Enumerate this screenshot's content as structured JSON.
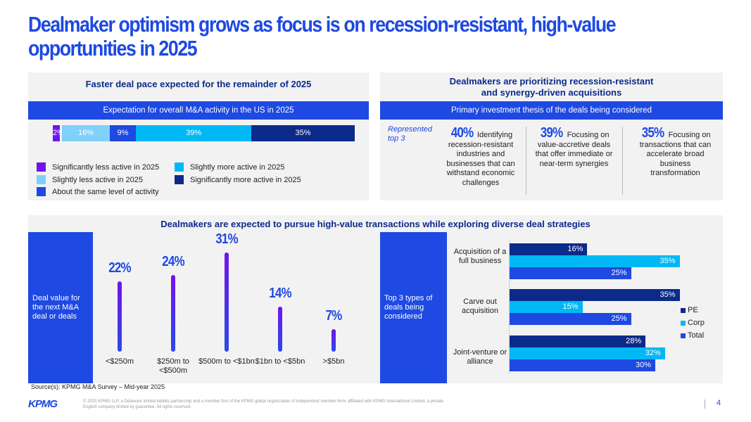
{
  "title": "Dealmaker optimism grows as focus is on recession-resistant, high-value opportunities in 2025",
  "colors": {
    "brand": "#1e49e2",
    "dark": "#0c2a8a",
    "cyan": "#00b8f5",
    "light": "#7fd0fa",
    "purple": "#7213ea"
  },
  "panel1": {
    "heading": "Faster deal pace expected for the remainder of 2025",
    "strip": "Expectation for overall M&A activity in the US in 2025"
  },
  "panel2": {
    "heading": "Dealmakers are prioritizing recession-resistant and synergy-driven acquisitions",
    "strip": "Primary investment thesis of the deals being considered",
    "note": "Represented top 3",
    "items": [
      {
        "pct": "40%",
        "text": "Identifying recession-resistant industries and businesses that can withstand economic challenges"
      },
      {
        "pct": "39%",
        "text": "Focusing on value-accretive deals that offer immediate or near-term synergies"
      },
      {
        "pct": "35%",
        "text": "Focusing on transactions that can accelerate broad business transformation"
      }
    ]
  },
  "panel3": {
    "heading": "Dealmakers are expected to pursue high-value transactions while exploring diverse deal strategies",
    "left_label": "Deal value for the next M&A deal or deals",
    "right_label": "Top 3 types of deals being considered"
  },
  "chart_data": [
    {
      "type": "bar",
      "orientation": "horizontal-stacked",
      "series": [
        {
          "name": "Significantly less active in 2025",
          "value": 2,
          "label": "2%",
          "color": "#7213ea"
        },
        {
          "name": "Slightly less active in 2025",
          "value": 16,
          "label": "16%",
          "color": "#7fd0fa"
        },
        {
          "name": "About the same level of activity",
          "value": 9,
          "label": "9%",
          "color": "#1e49e2"
        },
        {
          "name": "Slightly more active in 2025",
          "value": 39,
          "label": "39%",
          "color": "#00b8f5"
        },
        {
          "name": "Significantly more active in 2025",
          "value": 35,
          "label": "35%",
          "color": "#0c2a8a"
        }
      ],
      "legend": "bottom"
    },
    {
      "type": "bar",
      "categories": [
        "<$250m",
        "$250m to <$500m",
        "$500m to <$1bn",
        "$1bn to <$5bn",
        ">$5bn"
      ],
      "values": [
        22,
        24,
        31,
        14,
        7
      ],
      "labels": [
        "22%",
        "24%",
        "31%",
        "14%",
        "7%"
      ]
    },
    {
      "type": "bar",
      "orientation": "horizontal",
      "categories": [
        "Acquisition of a full business",
        "Carve out acquisition",
        "Joint-venture or alliance"
      ],
      "series": [
        {
          "name": "PE",
          "values": [
            16,
            35,
            28
          ],
          "labels": [
            "16%",
            "35%",
            "28%"
          ],
          "color": "#0c2a8a"
        },
        {
          "name": "Corp",
          "values": [
            35,
            15,
            32
          ],
          "labels": [
            "35%",
            "15%",
            "32%"
          ],
          "color": "#00b8f5"
        },
        {
          "name": "Total",
          "values": [
            25,
            25,
            30
          ],
          "labels": [
            "25%",
            "25%",
            "30%"
          ],
          "color": "#1e49e2"
        }
      ],
      "legend": "right"
    }
  ],
  "source": "Source(s):  KPMG M&A Survey – Mid-year 2025",
  "footer": {
    "logo": "KPMG",
    "legal": "© 2025 KPMG LLP, a Delaware limited liability partnership and a member firm of the KPMG global organization of independent member firms affiliated with KPMG International Limited, a private English company limited by guarantee. All rights reserved.",
    "page": "4"
  }
}
